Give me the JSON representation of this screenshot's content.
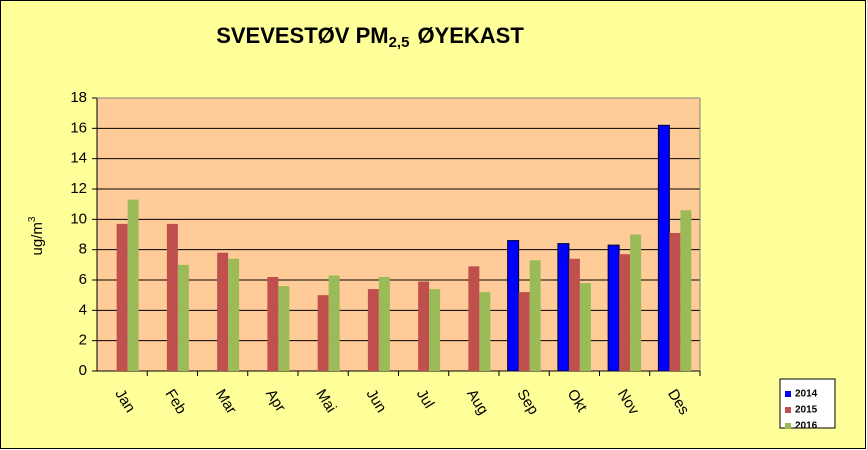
{
  "chart_data": {
    "type": "bar",
    "title": [
      "SVEVESTØV PM",
      "2,5",
      "ØYEKAST"
    ],
    "ylabel": [
      "ug/m",
      "3"
    ],
    "categories": [
      "Jan",
      "Feb",
      "Mar",
      "Apr",
      "Mai",
      "Jun",
      "Jul",
      "Aug",
      "Sep",
      "Okt",
      "Nov",
      "Des"
    ],
    "series": [
      {
        "name": "2014",
        "color": "#0000ff",
        "values": [
          null,
          null,
          null,
          null,
          null,
          null,
          null,
          null,
          8.6,
          8.4,
          8.3,
          16.2
        ]
      },
      {
        "name": "2015",
        "color": "#c0504d",
        "values": [
          9.7,
          9.7,
          7.8,
          6.2,
          5.0,
          5.4,
          5.9,
          6.9,
          5.2,
          7.4,
          7.7,
          9.1
        ]
      },
      {
        "name": "2016",
        "color": "#9bbb59",
        "values": [
          11.3,
          7.0,
          7.4,
          5.6,
          6.3,
          6.2,
          5.4,
          5.2,
          7.3,
          5.8,
          9.0,
          10.6
        ]
      }
    ],
    "ylim": [
      0,
      18
    ],
    "yticks": [
      0,
      2,
      4,
      6,
      8,
      10,
      12,
      14,
      16,
      18
    ],
    "grid": true
  }
}
